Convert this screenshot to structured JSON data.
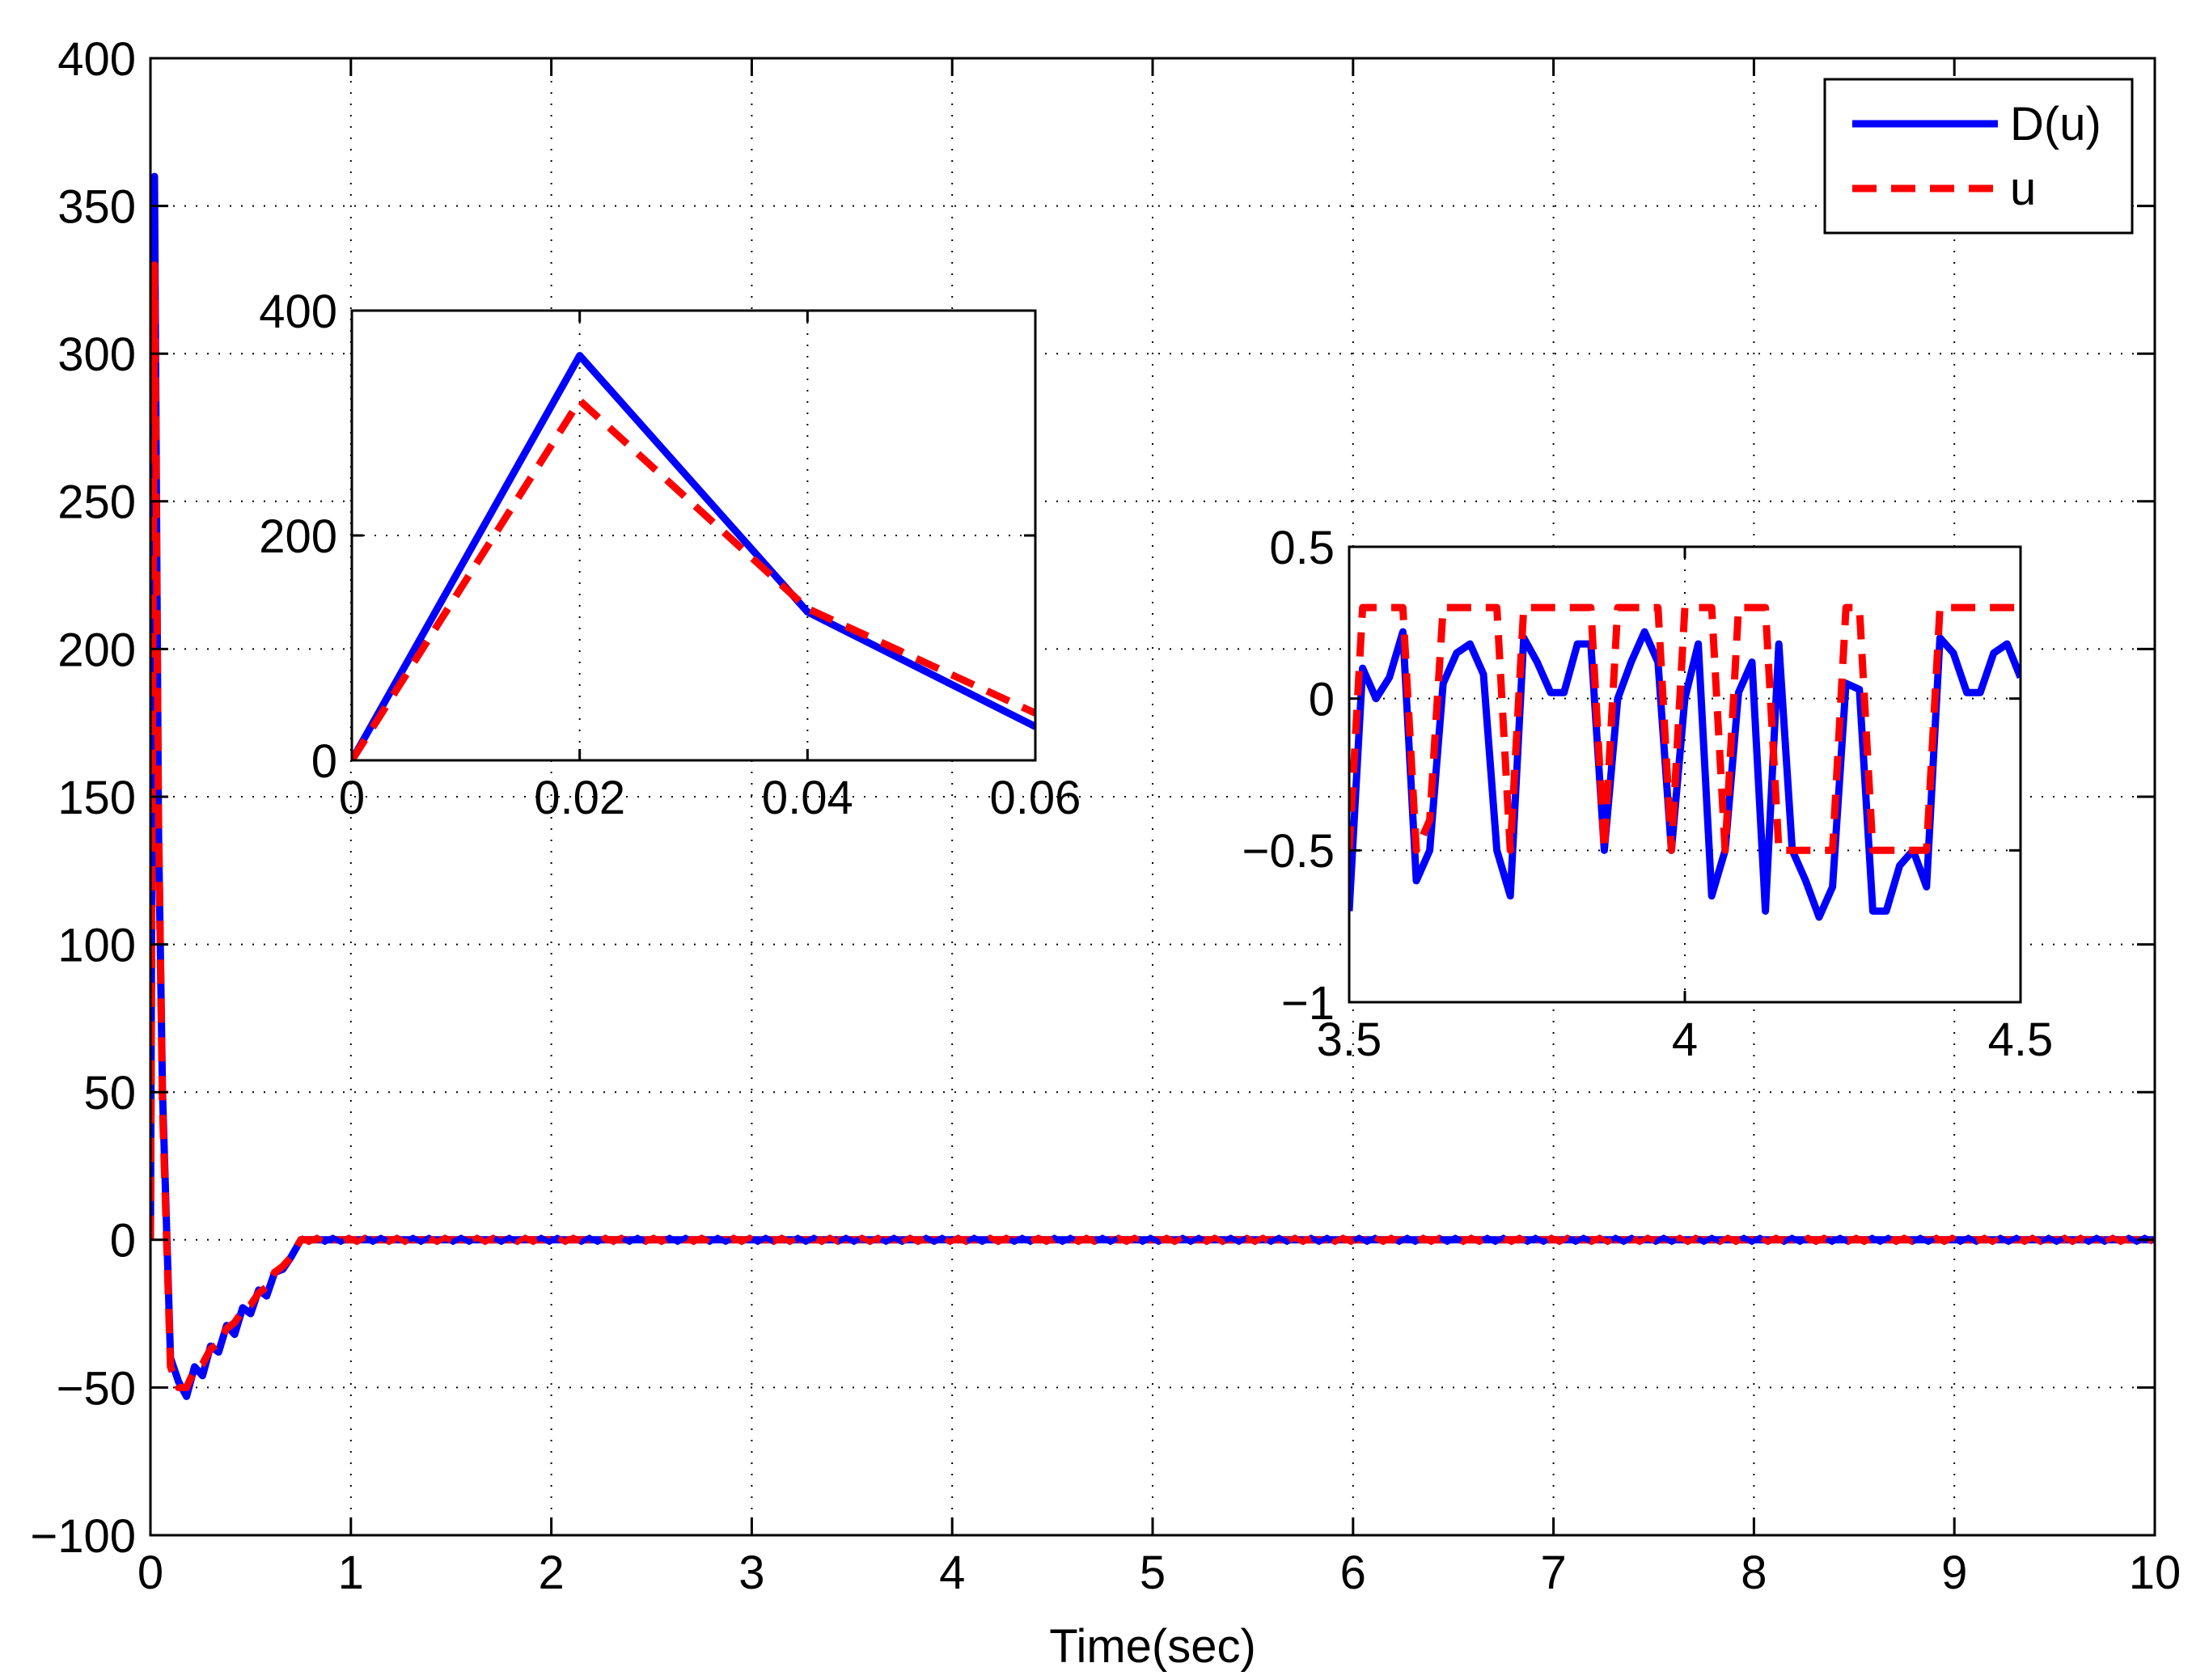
{
  "chart_data": [
    {
      "id": "main",
      "type": "line",
      "title": "",
      "xlabel": "Time(sec)",
      "ylabel": "",
      "xlim": [
        0,
        10
      ],
      "ylim": [
        -100,
        400
      ],
      "xticks": [
        0,
        1,
        2,
        3,
        4,
        5,
        6,
        7,
        8,
        9,
        10
      ],
      "xtick_labels": [
        "0",
        "1",
        "2",
        "3",
        "4",
        "5",
        "6",
        "7",
        "8",
        "9",
        "10"
      ],
      "yticks": [
        -100,
        -50,
        0,
        50,
        100,
        150,
        200,
        250,
        300,
        350,
        400
      ],
      "ytick_labels": [
        "−100",
        "−50",
        "0",
        "50",
        "100",
        "150",
        "200",
        "250",
        "300",
        "350",
        "400"
      ],
      "grid": true,
      "legend": {
        "position": "top-right",
        "entries": [
          "D(u)",
          "u"
        ]
      },
      "series": [
        {
          "name": "D(u)",
          "color": "#0000ff",
          "style": "solid",
          "points": [
            [
              0,
              0
            ],
            [
              0.02,
              360
            ],
            [
              0.04,
              140
            ],
            [
              0.06,
              50
            ],
            [
              0.1,
              -40
            ],
            [
              0.14,
              -48
            ],
            [
              0.18,
              -53
            ],
            [
              0.22,
              -43
            ],
            [
              0.26,
              -46
            ],
            [
              0.3,
              -36
            ],
            [
              0.34,
              -38
            ],
            [
              0.38,
              -29
            ],
            [
              0.42,
              -32
            ],
            [
              0.46,
              -23
            ],
            [
              0.5,
              -25
            ],
            [
              0.54,
              -17
            ],
            [
              0.58,
              -19
            ],
            [
              0.62,
              -11
            ],
            [
              0.66,
              -10
            ],
            [
              0.7,
              -6
            ],
            [
              0.75,
              0
            ],
            [
              10,
              0
            ]
          ]
        },
        {
          "name": "u",
          "color": "#ff0000",
          "style": "dashed",
          "points": [
            [
              0,
              0
            ],
            [
              0.02,
              330
            ],
            [
              0.04,
              145
            ],
            [
              0.06,
              45
            ],
            [
              0.1,
              -43
            ],
            [
              0.14,
              -50
            ],
            [
              0.18,
              -50
            ],
            [
              0.22,
              -44
            ],
            [
              0.26,
              -42
            ],
            [
              0.3,
              -37
            ],
            [
              0.34,
              -35
            ],
            [
              0.38,
              -30
            ],
            [
              0.42,
              -28
            ],
            [
              0.46,
              -24
            ],
            [
              0.5,
              -22
            ],
            [
              0.54,
              -18
            ],
            [
              0.58,
              -16
            ],
            [
              0.62,
              -11
            ],
            [
              0.66,
              -9
            ],
            [
              0.7,
              -6
            ],
            [
              0.75,
              0
            ],
            [
              10,
              0
            ]
          ]
        }
      ]
    },
    {
      "id": "inset-left",
      "type": "line",
      "xlim": [
        0,
        0.06
      ],
      "ylim": [
        0,
        400
      ],
      "xticks": [
        0,
        0.02,
        0.04,
        0.06
      ],
      "xtick_labels": [
        "0",
        "0.02",
        "0.04",
        "0.06"
      ],
      "yticks": [
        0,
        200,
        400
      ],
      "ytick_labels": [
        "0",
        "200",
        "400"
      ],
      "grid": true,
      "series": [
        {
          "name": "D(u)",
          "color": "#0000ff",
          "style": "solid",
          "points": [
            [
              0,
              0
            ],
            [
              0.02,
              360
            ],
            [
              0.04,
              132
            ],
            [
              0.06,
              30
            ]
          ]
        },
        {
          "name": "u",
          "color": "#ff0000",
          "style": "dashed",
          "points": [
            [
              0,
              0
            ],
            [
              0.02,
              320
            ],
            [
              0.04,
              135
            ],
            [
              0.06,
              42
            ]
          ]
        }
      ]
    },
    {
      "id": "inset-right",
      "type": "line",
      "xlim": [
        3.5,
        4.5
      ],
      "ylim": [
        -1,
        0.5
      ],
      "xticks": [
        3.5,
        4,
        4.5
      ],
      "xtick_labels": [
        "3.5",
        "4",
        "4.5"
      ],
      "yticks": [
        -1,
        -0.5,
        0,
        0.5
      ],
      "ytick_labels": [
        "−1",
        "−0.5",
        "0",
        "0.5"
      ],
      "grid": true,
      "series": [
        {
          "name": "D(u)",
          "color": "#0000ff",
          "style": "solid",
          "points": [
            [
              3.5,
              -0.7
            ],
            [
              3.52,
              0.1
            ],
            [
              3.54,
              0.0
            ],
            [
              3.56,
              0.07
            ],
            [
              3.58,
              0.22
            ],
            [
              3.6,
              -0.6
            ],
            [
              3.62,
              -0.5
            ],
            [
              3.64,
              0.05
            ],
            [
              3.66,
              0.15
            ],
            [
              3.68,
              0.18
            ],
            [
              3.7,
              0.08
            ],
            [
              3.72,
              -0.5
            ],
            [
              3.74,
              -0.65
            ],
            [
              3.76,
              0.2
            ],
            [
              3.78,
              0.12
            ],
            [
              3.8,
              0.02
            ],
            [
              3.82,
              0.02
            ],
            [
              3.84,
              0.18
            ],
            [
              3.86,
              0.18
            ],
            [
              3.88,
              -0.5
            ],
            [
              3.9,
              0.0
            ],
            [
              3.92,
              0.12
            ],
            [
              3.94,
              0.22
            ],
            [
              3.96,
              0.12
            ],
            [
              3.98,
              -0.5
            ],
            [
              4.0,
              0.0
            ],
            [
              4.02,
              0.18
            ],
            [
              4.04,
              -0.65
            ],
            [
              4.06,
              -0.5
            ],
            [
              4.08,
              0.02
            ],
            [
              4.1,
              0.12
            ],
            [
              4.12,
              -0.7
            ],
            [
              4.14,
              0.18
            ],
            [
              4.16,
              -0.5
            ],
            [
              4.18,
              -0.6
            ],
            [
              4.2,
              -0.72
            ],
            [
              4.22,
              -0.62
            ],
            [
              4.24,
              0.05
            ],
            [
              4.26,
              0.03
            ],
            [
              4.28,
              -0.7
            ],
            [
              4.3,
              -0.7
            ],
            [
              4.32,
              -0.55
            ],
            [
              4.34,
              -0.5
            ],
            [
              4.36,
              -0.62
            ],
            [
              4.38,
              0.2
            ],
            [
              4.4,
              0.15
            ],
            [
              4.42,
              0.02
            ],
            [
              4.44,
              0.02
            ],
            [
              4.46,
              0.15
            ],
            [
              4.48,
              0.18
            ],
            [
              4.5,
              0.07
            ]
          ]
        },
        {
          "name": "u",
          "color": "#ff0000",
          "style": "dashed",
          "points": [
            [
              3.5,
              -0.5
            ],
            [
              3.52,
              0.3
            ],
            [
              3.58,
              0.3
            ],
            [
              3.6,
              -0.5
            ],
            [
              3.62,
              -0.4
            ],
            [
              3.64,
              0.3
            ],
            [
              3.72,
              0.3
            ],
            [
              3.74,
              -0.5
            ],
            [
              3.76,
              0.3
            ],
            [
              3.86,
              0.3
            ],
            [
              3.88,
              -0.5
            ],
            [
              3.9,
              0.3
            ],
            [
              3.96,
              0.3
            ],
            [
              3.98,
              -0.5
            ],
            [
              4.0,
              0.3
            ],
            [
              4.04,
              0.3
            ],
            [
              4.06,
              -0.5
            ],
            [
              4.08,
              0.3
            ],
            [
              4.12,
              0.3
            ],
            [
              4.14,
              -0.5
            ],
            [
              4.16,
              -0.5
            ],
            [
              4.18,
              -0.5
            ],
            [
              4.2,
              -0.5
            ],
            [
              4.22,
              -0.5
            ],
            [
              4.24,
              0.3
            ],
            [
              4.26,
              0.3
            ],
            [
              4.28,
              -0.5
            ],
            [
              4.36,
              -0.5
            ],
            [
              4.38,
              0.3
            ],
            [
              4.5,
              0.3
            ]
          ]
        }
      ]
    }
  ]
}
